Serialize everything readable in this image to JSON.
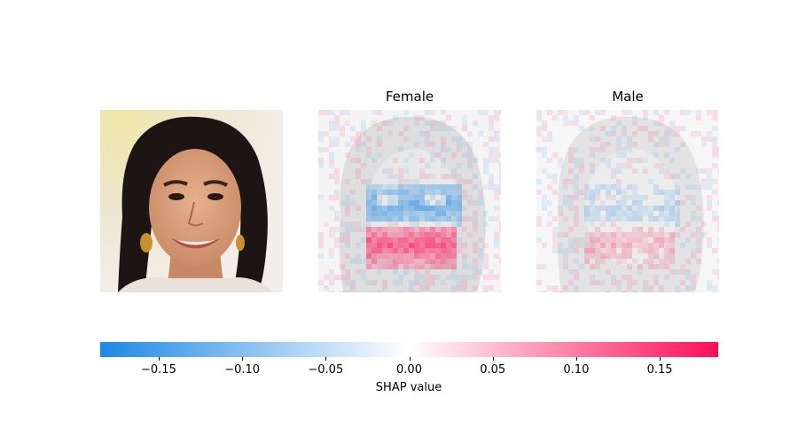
{
  "chart_data": {
    "type": "heatmap",
    "panels": [
      {
        "title": "",
        "kind": "input image"
      },
      {
        "title": "Female",
        "kind": "SHAP overlay"
      },
      {
        "title": "Male",
        "kind": "SHAP overlay"
      }
    ],
    "colorbar": {
      "label": "SHAP value",
      "range": [
        -0.185,
        0.185
      ],
      "ticks": [
        -0.15,
        -0.1,
        -0.05,
        0.0,
        0.05,
        0.1,
        0.15
      ],
      "tick_labels": [
        "−0.15",
        "−0.10",
        "−0.05",
        "0.00",
        "0.05",
        "0.10",
        "0.15"
      ],
      "colors": {
        "negative": "#1E88E5",
        "zero": "#FFFFFF",
        "positive": "#FF0D57"
      }
    }
  }
}
